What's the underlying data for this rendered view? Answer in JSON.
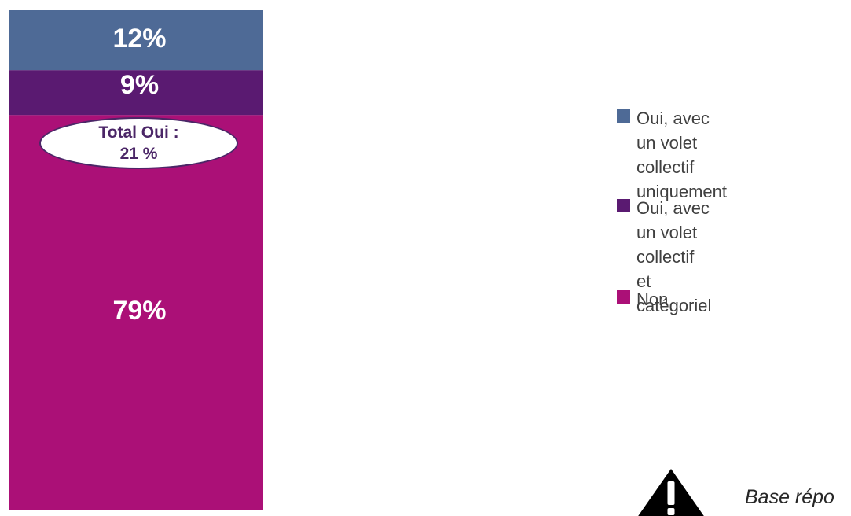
{
  "chart_data": {
    "type": "bar",
    "stacked": true,
    "categories": [
      ""
    ],
    "series": [
      {
        "name": "Oui, avec un volet\ncollectif uniquement",
        "values": [
          12
        ],
        "label": "12%",
        "color": "#4e6a96"
      },
      {
        "name": "Oui, avec un volet\ncollectif et catégoriel",
        "values": [
          9
        ],
        "label": "9%",
        "color": "#5a1a71"
      },
      {
        "name": "Non",
        "values": [
          79
        ],
        "label": "79%",
        "color": "#ab1077"
      }
    ],
    "ylim": [
      0,
      100
    ],
    "grid": false,
    "legend": "right",
    "annotation": {
      "line1": "Total Oui :",
      "line2": "21 %"
    }
  },
  "footer": {
    "note": "Base répo",
    "icon": "warning-icon"
  }
}
